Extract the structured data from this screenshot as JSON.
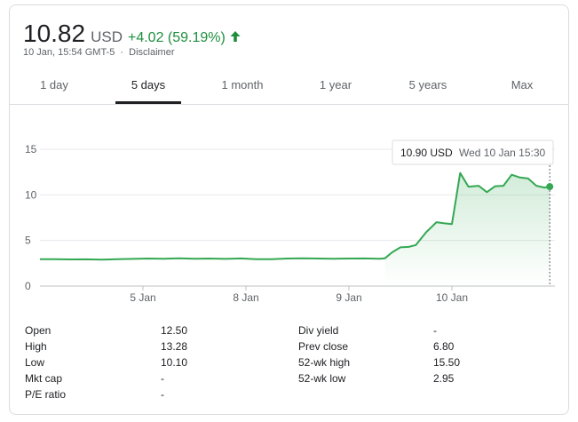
{
  "quote": {
    "price": "10.82",
    "currency": "USD",
    "change": "+4.02 (59.19%)",
    "timestamp": "10 Jan, 15:54 GMT-5",
    "separator": "·",
    "disclaimer": "Disclaimer"
  },
  "tabs": [
    {
      "label": "1 day",
      "active": false
    },
    {
      "label": "5 days",
      "active": true
    },
    {
      "label": "1 month",
      "active": false
    },
    {
      "label": "1 year",
      "active": false
    },
    {
      "label": "5 years",
      "active": false
    },
    {
      "label": "Max",
      "active": false
    }
  ],
  "colors": {
    "accent_green": "#1e8e3e",
    "line_green": "#34a853",
    "text_dark": "#202124",
    "text_grey": "#5f6368",
    "grid": "#e8eaed"
  },
  "icons": {
    "change_direction": "arrow-up-icon"
  },
  "chart_data": {
    "type": "line",
    "title": "",
    "xlabel": "",
    "ylabel": "",
    "ylim": [
      0,
      15
    ],
    "y_ticks": [
      "0",
      "5",
      "10",
      "15"
    ],
    "x_ticks": [
      {
        "label": "5 Jan",
        "x": 1
      },
      {
        "label": "8 Jan",
        "x": 2
      },
      {
        "label": "9 Jan",
        "x": 3
      },
      {
        "label": "10 Jan",
        "x": 4
      }
    ],
    "grid": true,
    "x": [
      0,
      0.15,
      0.3,
      0.45,
      0.6,
      0.75,
      0.9,
      1.05,
      1.2,
      1.35,
      1.5,
      1.65,
      1.8,
      1.95,
      2.1,
      2.25,
      2.4,
      2.55,
      2.7,
      2.85,
      3.0,
      3.15,
      3.3,
      3.35,
      3.42,
      3.5,
      3.58,
      3.65,
      3.75,
      3.85,
      3.92,
      4.0,
      4.08,
      4.16,
      4.26,
      4.34,
      4.42,
      4.5,
      4.58,
      4.66,
      4.74,
      4.82,
      4.9,
      4.95
    ],
    "series": [
      {
        "values": [
          2.95,
          2.95,
          2.92,
          2.93,
          2.9,
          2.95,
          2.98,
          3.02,
          3.0,
          3.05,
          3.0,
          3.02,
          2.98,
          3.03,
          2.95,
          2.95,
          3.02,
          3.05,
          3.02,
          3.0,
          3.02,
          3.03,
          3.0,
          3.05,
          3.7,
          4.25,
          4.3,
          4.5,
          5.9,
          7.0,
          6.9,
          6.8,
          12.4,
          10.9,
          11.0,
          10.3,
          10.95,
          11.0,
          12.2,
          11.9,
          11.8,
          11.0,
          10.8,
          10.9
        ]
      }
    ],
    "hover_label": "10.90 USD",
    "hover_time": "Wed 10 Jan 15:30"
  },
  "stats": {
    "left": [
      {
        "label": "Open",
        "value": "12.50"
      },
      {
        "label": "High",
        "value": "13.28"
      },
      {
        "label": "Low",
        "value": "10.10"
      },
      {
        "label": "Mkt cap",
        "value": "-"
      },
      {
        "label": "P/E ratio",
        "value": "-"
      }
    ],
    "right": [
      {
        "label": "Div yield",
        "value": "-"
      },
      {
        "label": "Prev close",
        "value": "6.80"
      },
      {
        "label": "52-wk high",
        "value": "15.50"
      },
      {
        "label": "52-wk low",
        "value": "2.95"
      }
    ]
  }
}
